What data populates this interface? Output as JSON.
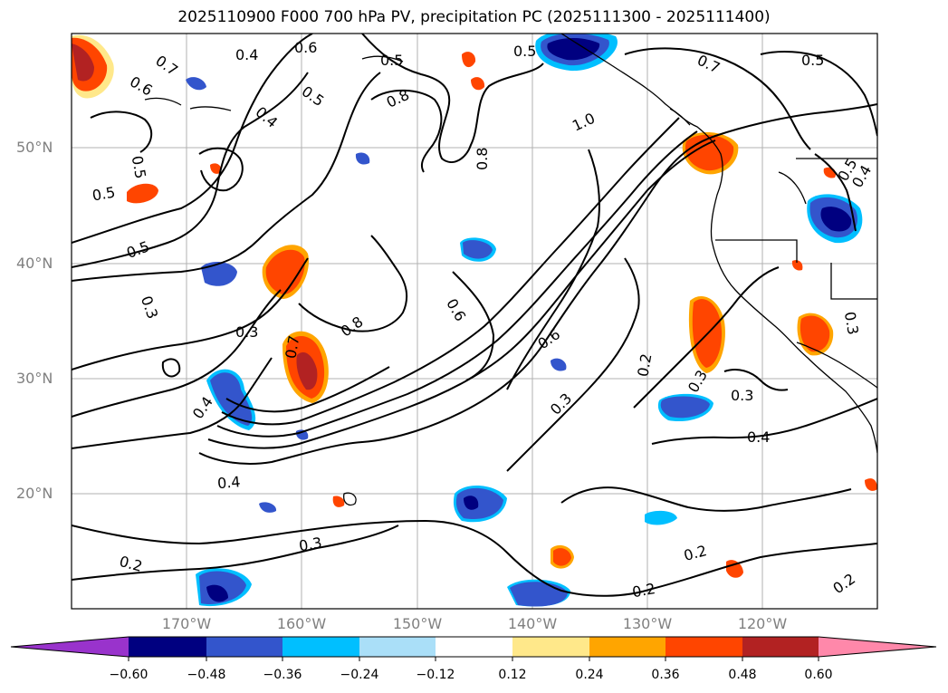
{
  "title": "2025110900 F000 700 hPa PV, precipitation PC (2025111300 - 2025111400)",
  "lat_labels": [
    "50°N",
    "40°N",
    "30°N",
    "20°N"
  ],
  "lon_labels": [
    "170°W",
    "160°W",
    "150°W",
    "140°W",
    "130°W",
    "120°W"
  ],
  "colorbar": {
    "ticks": [
      "−0.60",
      "−0.48",
      "−0.36",
      "−0.24",
      "−0.12",
      "0.12",
      "0.24",
      "0.36",
      "0.48",
      "0.60"
    ],
    "colors": [
      "#9933cc",
      "#000080",
      "#3355cc",
      "#00bfff",
      "#aadff8",
      "#ffffff",
      "#ffe88a",
      "#ffa500",
      "#ff4500",
      "#b22222",
      "#ff88aa"
    ]
  },
  "contour_labels": [
    "0.7",
    "0.4",
    "0.6",
    "0.5",
    "0.6",
    "0.4",
    "0.5",
    "0.5",
    "0.8",
    "0.5",
    "0.5",
    "0.7",
    "0.5",
    "0.8",
    "1.0",
    "0.5",
    "0.5",
    "0.3",
    "0.3",
    "0.8",
    "0.6",
    "0.6",
    "0.7",
    "0.4",
    "0.3",
    "0.2",
    "0.3",
    "0.3",
    "0.4",
    "0.4",
    "0.3",
    "0.2",
    "0.2",
    "0.2",
    "0.2",
    "0.4",
    "0.3"
  ]
}
